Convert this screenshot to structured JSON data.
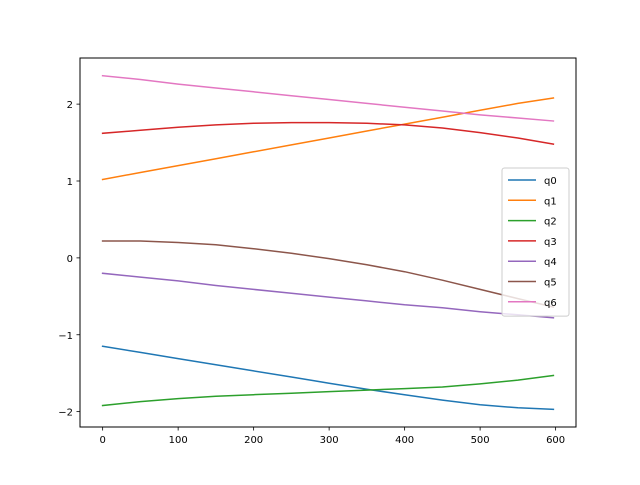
{
  "chart_data": {
    "type": "line",
    "title": "",
    "xlabel": "",
    "ylabel": "",
    "xlim": [
      -30,
      627
    ],
    "ylim": [
      -2.2,
      2.6
    ],
    "xticks": [
      0,
      100,
      200,
      300,
      400,
      500,
      600
    ],
    "yticks": [
      -2,
      -1,
      0,
      1,
      2
    ],
    "xtick_labels": [
      "0",
      "100",
      "200",
      "300",
      "400",
      "500",
      "600"
    ],
    "ytick_labels": [
      "−2",
      "−1",
      "0",
      "1",
      "2"
    ],
    "grid": false,
    "legend_position": "center-right",
    "x": [
      0,
      50,
      100,
      150,
      200,
      250,
      300,
      350,
      400,
      450,
      500,
      550,
      597
    ],
    "series": [
      {
        "name": "q0",
        "color": "#1f77b4",
        "values": [
          -1.15,
          -1.23,
          -1.31,
          -1.39,
          -1.47,
          -1.55,
          -1.63,
          -1.71,
          -1.78,
          -1.85,
          -1.91,
          -1.95,
          -1.97
        ]
      },
      {
        "name": "q1",
        "color": "#ff7f0e",
        "values": [
          1.02,
          1.11,
          1.2,
          1.29,
          1.38,
          1.47,
          1.56,
          1.65,
          1.74,
          1.83,
          1.92,
          2.01,
          2.08
        ]
      },
      {
        "name": "q2",
        "color": "#2ca02c",
        "values": [
          -1.92,
          -1.87,
          -1.83,
          -1.8,
          -1.78,
          -1.76,
          -1.74,
          -1.72,
          -1.7,
          -1.68,
          -1.64,
          -1.59,
          -1.53
        ]
      },
      {
        "name": "q3",
        "color": "#d62728",
        "values": [
          1.62,
          1.66,
          1.7,
          1.73,
          1.75,
          1.76,
          1.76,
          1.75,
          1.73,
          1.69,
          1.63,
          1.56,
          1.48
        ]
      },
      {
        "name": "q4",
        "color": "#9467bd",
        "values": [
          -0.2,
          -0.25,
          -0.3,
          -0.36,
          -0.41,
          -0.46,
          -0.51,
          -0.56,
          -0.61,
          -0.65,
          -0.7,
          -0.74,
          -0.78
        ]
      },
      {
        "name": "q5",
        "color": "#8c564b",
        "values": [
          0.22,
          0.22,
          0.2,
          0.17,
          0.12,
          0.06,
          -0.01,
          -0.09,
          -0.18,
          -0.29,
          -0.41,
          -0.53,
          -0.64
        ]
      },
      {
        "name": "q6",
        "color": "#e377c2",
        "values": [
          2.37,
          2.32,
          2.26,
          2.21,
          2.16,
          2.11,
          2.06,
          2.01,
          1.96,
          1.91,
          1.86,
          1.82,
          1.78
        ]
      }
    ]
  }
}
